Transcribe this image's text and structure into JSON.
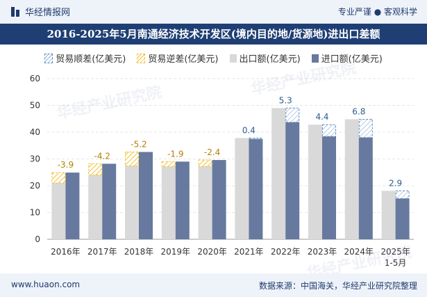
{
  "header": {
    "brand": "华经情报网",
    "tagline": "专业严谨 ● 客观科学"
  },
  "title": "2016-2025年5月南通经济技术开发区(境内目的地/货源地)进出口差额",
  "legend": {
    "surplus": "贸易顺差(亿美元)",
    "deficit": "贸易逆差(亿美元)",
    "export": "出口额(亿美元)",
    "import": "进口额(亿美元)"
  },
  "colors": {
    "export": "#d9d9d9",
    "import": "#67799e",
    "surplus": "#5a8cc0",
    "deficit": "#f0c030",
    "title_bg": "#1f3f74"
  },
  "chart_data": {
    "type": "bar",
    "categories": [
      "2016年",
      "2017年",
      "2018年",
      "2019年",
      "2020年",
      "2021年",
      "2022年",
      "2023年",
      "2024年",
      "2025年\n1-5月"
    ],
    "series": [
      {
        "name": "出口额(亿美元)",
        "values": [
          21.0,
          24.0,
          27.4,
          27.1,
          27.2,
          37.8,
          49.0,
          42.8,
          44.8,
          18.1
        ]
      },
      {
        "name": "进口额(亿美元)",
        "values": [
          24.9,
          28.2,
          32.6,
          29.0,
          29.6,
          37.4,
          43.7,
          38.4,
          38.0,
          15.2
        ]
      }
    ],
    "balance": {
      "values": [
        -3.9,
        -4.2,
        -5.2,
        -1.9,
        -2.4,
        0.4,
        5.3,
        4.4,
        6.8,
        2.9
      ],
      "labels": [
        "-3.9",
        "-4.2",
        "-5.2",
        "-1.9",
        "-2.4",
        "0.4",
        "5.3",
        "4.4",
        "6.8",
        "2.9"
      ]
    },
    "ylim": [
      0,
      60
    ],
    "yticks": [
      0,
      10,
      20,
      30,
      40,
      50,
      60
    ],
    "grid": true,
    "legend_position": "top"
  },
  "footer": {
    "url": "www.huaon.com",
    "source": "数据来源：中国海关，华经产业研究院整理"
  },
  "watermark": "华经产业研究院"
}
